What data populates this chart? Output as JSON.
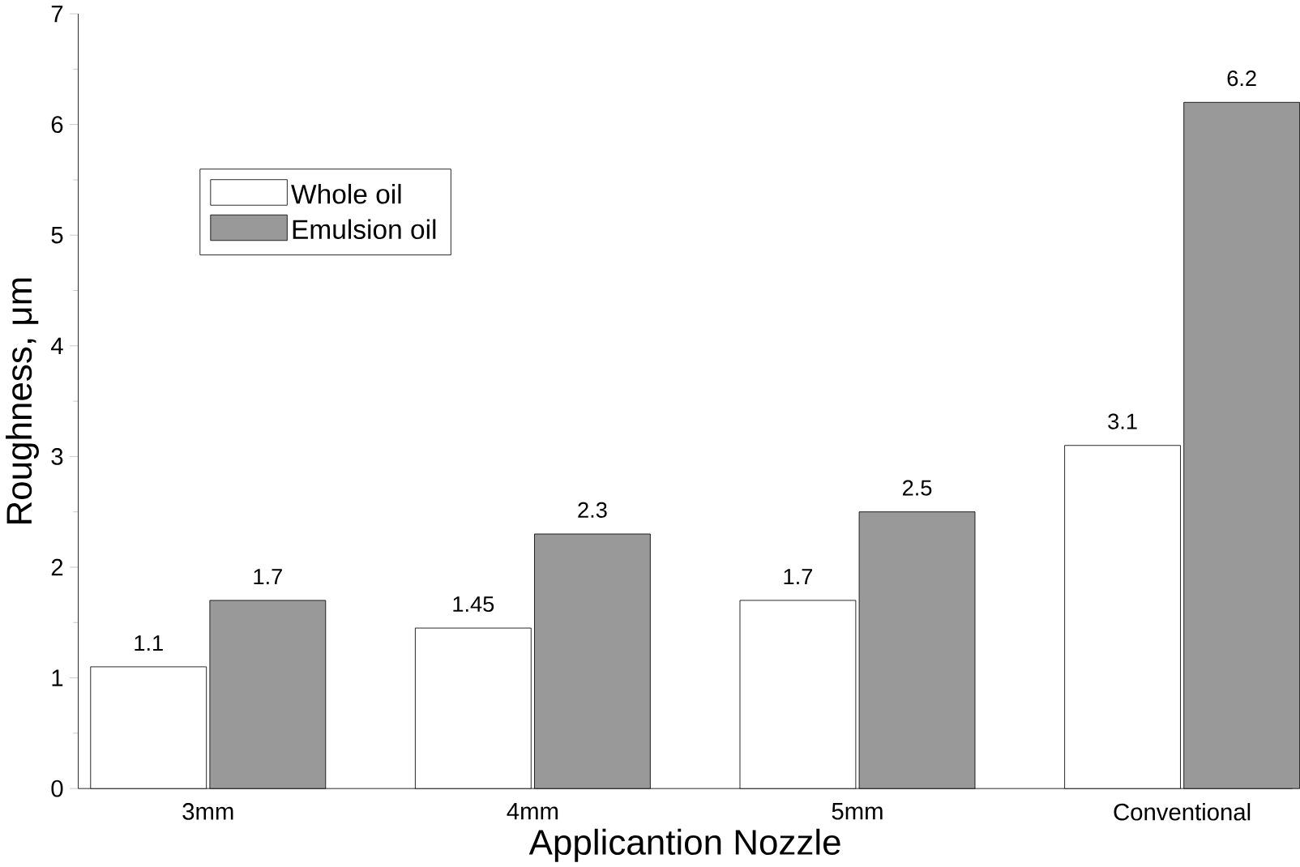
{
  "chart_data": {
    "type": "bar",
    "xlabel": "Applicantion Nozzle",
    "ylabel": "Roughness, μm",
    "categories": [
      "3mm",
      "4mm",
      "5mm",
      "Conventional"
    ],
    "series": [
      {
        "name": "Whole oil",
        "color": "#ffffff",
        "values": [
          1.1,
          1.45,
          1.7,
          3.1
        ],
        "value_labels": [
          "1.1",
          "1.45",
          "1.7",
          "3.1"
        ]
      },
      {
        "name": "Emulsion oil",
        "color": "#999999",
        "values": [
          1.7,
          2.3,
          2.5,
          6.2
        ],
        "value_labels": [
          "1.7",
          "2.3",
          "2.5",
          "6.2"
        ]
      }
    ],
    "ylim": [
      0,
      7
    ],
    "yticks": [
      0,
      1,
      2,
      3,
      4,
      5,
      6,
      7
    ],
    "legend": "top left",
    "grid": false
  }
}
